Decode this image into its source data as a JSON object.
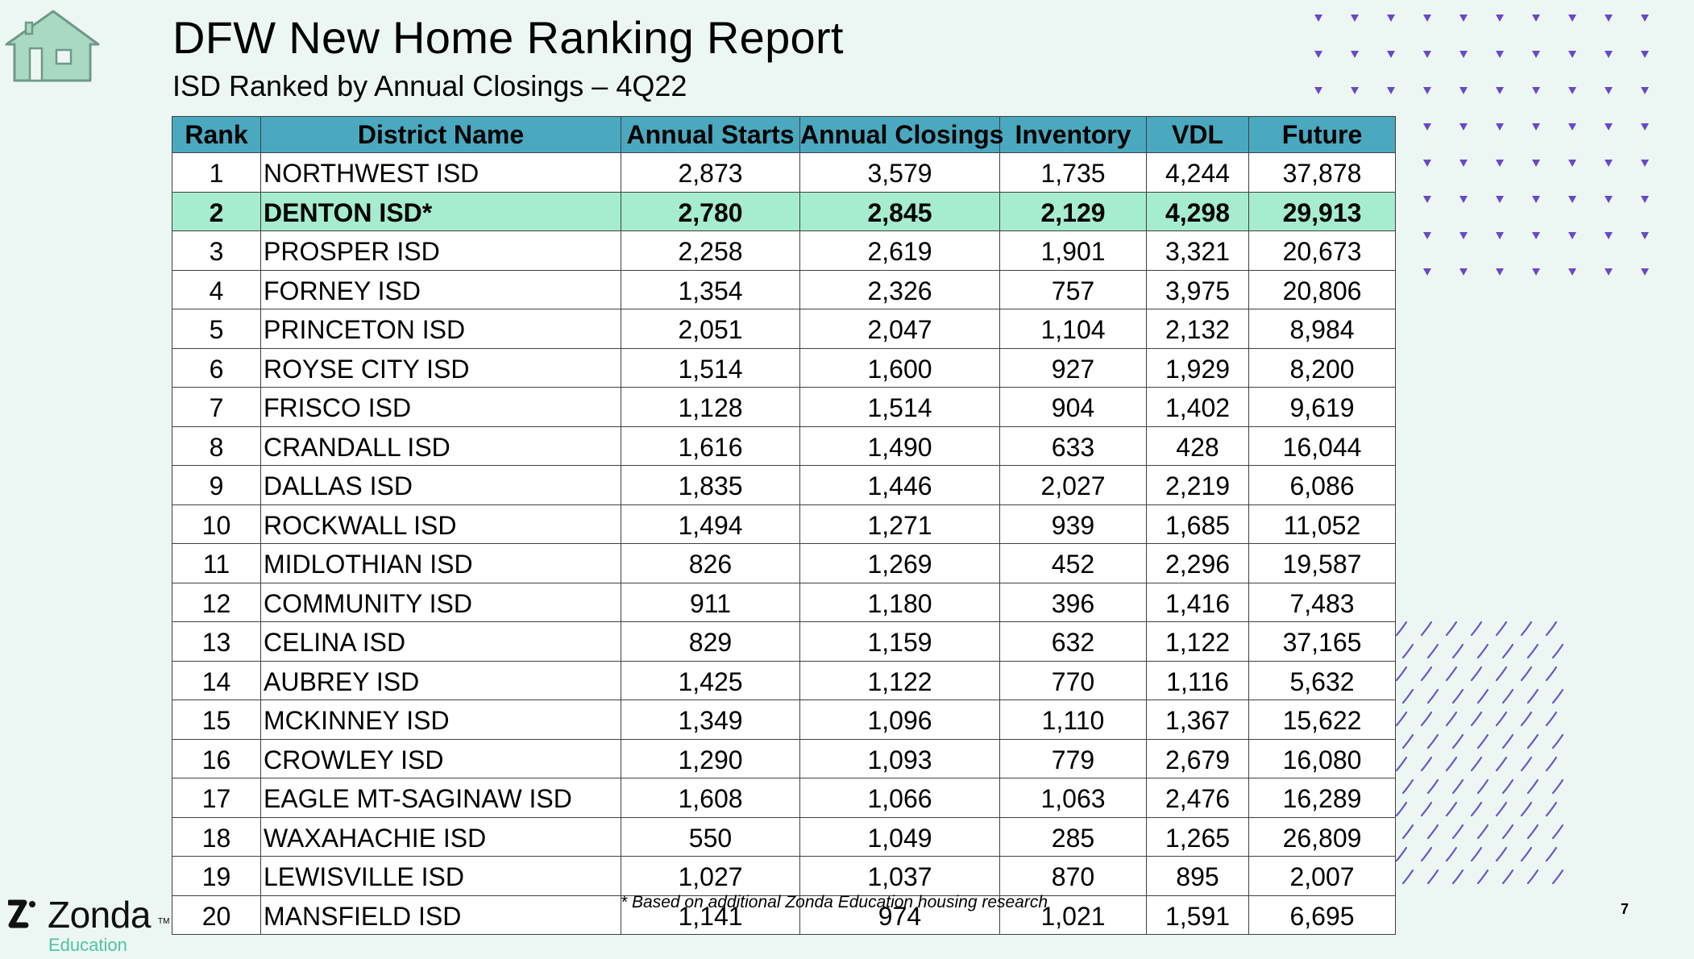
{
  "header": {
    "title": "DFW New Home Ranking Report",
    "subtitle": "ISD Ranked by Annual Closings – 4Q22"
  },
  "table": {
    "columns": [
      "Rank",
      "District Name",
      "Annual Starts",
      "Annual Closings",
      "Inventory",
      "VDL",
      "Future"
    ],
    "highlight_rank": "2",
    "rows": [
      [
        "1",
        "NORTHWEST ISD",
        "2,873",
        "3,579",
        "1,735",
        "4,244",
        "37,878"
      ],
      [
        "2",
        "DENTON ISD*",
        "2,780",
        "2,845",
        "2,129",
        "4,298",
        "29,913"
      ],
      [
        "3",
        "PROSPER ISD",
        "2,258",
        "2,619",
        "1,901",
        "3,321",
        "20,673"
      ],
      [
        "4",
        "FORNEY ISD",
        "1,354",
        "2,326",
        "757",
        "3,975",
        "20,806"
      ],
      [
        "5",
        "PRINCETON ISD",
        "2,051",
        "2,047",
        "1,104",
        "2,132",
        "8,984"
      ],
      [
        "6",
        "ROYSE CITY ISD",
        "1,514",
        "1,600",
        "927",
        "1,929",
        "8,200"
      ],
      [
        "7",
        "FRISCO ISD",
        "1,128",
        "1,514",
        "904",
        "1,402",
        "9,619"
      ],
      [
        "8",
        "CRANDALL ISD",
        "1,616",
        "1,490",
        "633",
        "428",
        "16,044"
      ],
      [
        "9",
        "DALLAS ISD",
        "1,835",
        "1,446",
        "2,027",
        "2,219",
        "6,086"
      ],
      [
        "10",
        "ROCKWALL ISD",
        "1,494",
        "1,271",
        "939",
        "1,685",
        "11,052"
      ],
      [
        "11",
        "MIDLOTHIAN ISD",
        "826",
        "1,269",
        "452",
        "2,296",
        "19,587"
      ],
      [
        "12",
        "COMMUNITY ISD",
        "911",
        "1,180",
        "396",
        "1,416",
        "7,483"
      ],
      [
        "13",
        "CELINA ISD",
        "829",
        "1,159",
        "632",
        "1,122",
        "37,165"
      ],
      [
        "14",
        "AUBREY ISD",
        "1,425",
        "1,122",
        "770",
        "1,116",
        "5,632"
      ],
      [
        "15",
        "MCKINNEY ISD",
        "1,349",
        "1,096",
        "1,110",
        "1,367",
        "15,622"
      ],
      [
        "16",
        "CROWLEY ISD",
        "1,290",
        "1,093",
        "779",
        "2,679",
        "16,080"
      ],
      [
        "17",
        "EAGLE MT-SAGINAW ISD",
        "1,608",
        "1,066",
        "1,063",
        "2,476",
        "16,289"
      ],
      [
        "18",
        "WAXAHACHIE ISD",
        "550",
        "1,049",
        "285",
        "1,265",
        "26,809"
      ],
      [
        "19",
        "LEWISVILLE ISD",
        "1,027",
        "1,037",
        "870",
        "895",
        "2,007"
      ],
      [
        "20",
        "MANSFIELD ISD",
        "1,141",
        "974",
        "1,021",
        "1,591",
        "6,695"
      ]
    ]
  },
  "footnote": "* Based on additional Zonda Education housing research",
  "brand": {
    "name": "Zonda",
    "tm": "TM",
    "sub": "Education"
  },
  "page_number": "7",
  "icons": {
    "logo": "house-icon",
    "brand_mark": "zonda-z-icon"
  },
  "colors": {
    "background": "#ecf7f3",
    "header_fill": "#4aa8bf",
    "highlight_fill": "#a6ecce",
    "house_fill": "#a9d9c3",
    "dot_color": "#6a48c8",
    "slash_color": "#6a58c8",
    "brand_sub": "#4fc4a4"
  }
}
